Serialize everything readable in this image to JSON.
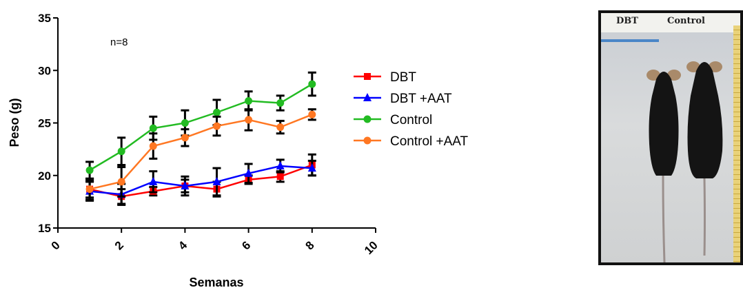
{
  "chart_data": {
    "type": "line",
    "title": "",
    "xlabel": "Semanas",
    "ylabel": "Peso (g)",
    "annotation": "n=8",
    "xlim": [
      0,
      10
    ],
    "ylim": [
      15,
      35
    ],
    "x_ticks": [
      "0",
      "2",
      "4",
      "6",
      "8",
      "10"
    ],
    "y_ticks": [
      "15",
      "20",
      "25",
      "30",
      "35"
    ],
    "grid": false,
    "legend_position": "right",
    "x": [
      1,
      2,
      3,
      4,
      5,
      6,
      7,
      8
    ],
    "series": [
      {
        "name": "DBT",
        "color": "#ff0000",
        "marker": "square",
        "values": [
          18.7,
          18.0,
          18.5,
          19.0,
          18.7,
          19.6,
          19.9,
          21.0
        ],
        "error": [
          0.8,
          0.7,
          0.4,
          0.6,
          0.7,
          0.4,
          0.5,
          1.0
        ]
      },
      {
        "name": "DBT +AAT",
        "color": "#0000ff",
        "marker": "triangle",
        "values": [
          18.5,
          18.2,
          19.4,
          19.0,
          19.4,
          20.2,
          20.9,
          20.7
        ],
        "error": [
          0.9,
          1.0,
          1.0,
          0.9,
          1.3,
          0.9,
          0.6,
          0.7
        ]
      },
      {
        "name": "Control",
        "color": "#22bb22",
        "marker": "circle",
        "values": [
          20.5,
          22.3,
          24.5,
          25.0,
          26.0,
          27.1,
          26.9,
          28.7
        ],
        "error": [
          0.8,
          1.3,
          1.1,
          1.2,
          1.2,
          0.9,
          0.7,
          1.1
        ]
      },
      {
        "name": "Control +AAT",
        "color": "#ff7722",
        "marker": "circle",
        "values": [
          18.7,
          19.4,
          22.8,
          23.6,
          24.7,
          25.3,
          24.6,
          25.8
        ],
        "error": [
          1.0,
          1.4,
          1.2,
          0.8,
          0.9,
          1.0,
          0.6,
          0.5
        ]
      }
    ]
  },
  "photo": {
    "label_left": "DBT",
    "label_right": "Control"
  }
}
